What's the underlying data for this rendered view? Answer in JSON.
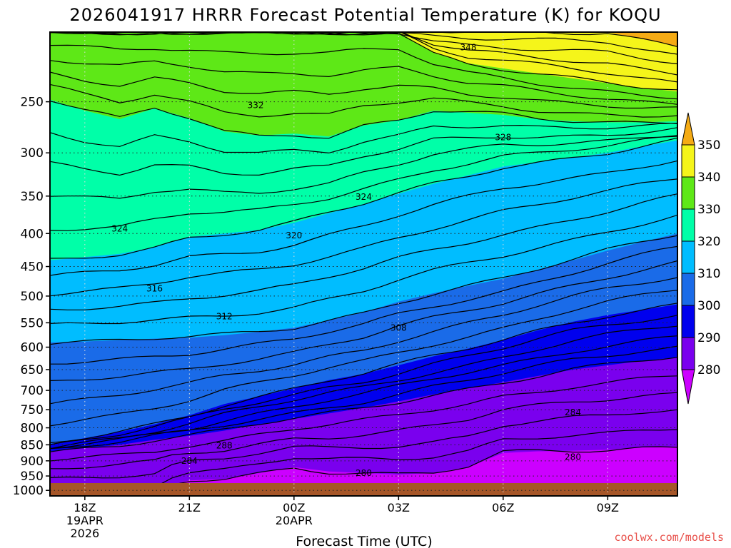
{
  "title": "2026041917 HRRR Forecast Potential Temperature (K) for KOQU",
  "xlabel": "Forecast Time (UTC)",
  "credit": "coolwx.com/models",
  "chart_data": {
    "type": "contour",
    "title": "2026041917 HRRR Forecast Potential Temperature (K) for KOQU",
    "xlabel": "Forecast Time (UTC)",
    "ylabel": "",
    "x_ticks": [
      {
        "label": "18Z",
        "sub": [
          "19APR",
          "2026"
        ],
        "hours": 1
      },
      {
        "label": "21Z",
        "sub": [],
        "hours": 4
      },
      {
        "label": "00Z",
        "sub": [
          "20APR"
        ],
        "hours": 7
      },
      {
        "label": "03Z",
        "sub": [],
        "hours": 10
      },
      {
        "label": "06Z",
        "sub": [],
        "hours": 13
      },
      {
        "label": "09Z",
        "sub": [],
        "hours": 16
      }
    ],
    "xlim_hours": [
      0,
      18
    ],
    "y_scale": "log",
    "ylim_hPa": [
      1020,
      195
    ],
    "y_ticks": [
      250,
      300,
      350,
      400,
      450,
      500,
      550,
      600,
      650,
      700,
      750,
      800,
      850,
      900,
      950,
      1000
    ],
    "grid": true,
    "colorbar": {
      "levels": [
        280,
        290,
        300,
        310,
        320,
        330,
        340,
        350
      ],
      "colors": [
        "#cc00ff",
        "#7a00ee",
        "#0000ee",
        "#1a6be8",
        "#00bdff",
        "#00ffa8",
        "#5ee817",
        "#f5f51a",
        "#f5ab14"
      ],
      "extend": "both",
      "placement": "right"
    },
    "contour_interval": 2,
    "contour_labels": [
      {
        "value": 348,
        "hours": 12,
        "hPa": 206
      },
      {
        "value": 332,
        "hours": 5.9,
        "hPa": 253
      },
      {
        "value": 328,
        "hours": 13,
        "hPa": 284
      },
      {
        "value": 324,
        "hours": 2,
        "hPa": 393
      },
      {
        "value": 324,
        "hours": 9,
        "hPa": 351
      },
      {
        "value": 320,
        "hours": 7,
        "hPa": 403
      },
      {
        "value": 316,
        "hours": 3,
        "hPa": 487
      },
      {
        "value": 312,
        "hours": 5,
        "hPa": 538
      },
      {
        "value": 308,
        "hours": 10,
        "hPa": 560
      },
      {
        "value": 288,
        "hours": 5,
        "hPa": 852
      },
      {
        "value": 284,
        "hours": 4,
        "hPa": 900
      },
      {
        "value": 284,
        "hours": 15,
        "hPa": 757
      },
      {
        "value": 280,
        "hours": 9,
        "hPa": 940
      },
      {
        "value": 280,
        "hours": 15,
        "hPa": 888
      }
    ],
    "boundaries": [
      {
        "theta": 280,
        "points": [
          [
            0,
            1020
          ],
          [
            3.2,
            1020
          ],
          [
            3.2,
            990
          ],
          [
            4,
            965
          ],
          [
            5,
            960
          ],
          [
            6,
            940
          ],
          [
            7,
            920
          ],
          [
            8,
            935
          ],
          [
            9,
            940
          ],
          [
            10,
            945
          ],
          [
            11,
            940
          ],
          [
            12,
            920
          ],
          [
            13,
            875
          ],
          [
            14,
            870
          ],
          [
            15,
            868
          ],
          [
            16,
            865
          ],
          [
            17,
            858
          ],
          [
            18,
            855
          ]
        ]
      },
      {
        "theta": 290,
        "points": [
          [
            0,
            870
          ],
          [
            1,
            860
          ],
          [
            2,
            850
          ],
          [
            3,
            835
          ],
          [
            4,
            823
          ],
          [
            5,
            808
          ],
          [
            6,
            790
          ],
          [
            7,
            775
          ],
          [
            8,
            760
          ],
          [
            9,
            745
          ],
          [
            10,
            728
          ],
          [
            11,
            710
          ],
          [
            12,
            695
          ],
          [
            13,
            680
          ],
          [
            14,
            665
          ],
          [
            15,
            650
          ],
          [
            16,
            640
          ],
          [
            17,
            630
          ],
          [
            18,
            622
          ]
        ]
      },
      {
        "theta": 300,
        "points": [
          [
            0,
            848
          ],
          [
            1,
            830
          ],
          [
            2,
            812
          ],
          [
            3,
            790
          ],
          [
            4,
            765
          ],
          [
            5,
            735
          ],
          [
            6,
            715
          ],
          [
            7,
            695
          ],
          [
            8,
            675
          ],
          [
            9,
            660
          ],
          [
            10,
            640
          ],
          [
            11,
            620
          ],
          [
            12,
            603
          ],
          [
            13,
            585
          ],
          [
            14,
            565
          ],
          [
            15,
            548
          ],
          [
            16,
            535
          ],
          [
            17,
            525
          ],
          [
            18,
            515
          ]
        ]
      },
      {
        "theta": 310,
        "points": [
          [
            0,
            590
          ],
          [
            1,
            588
          ],
          [
            2,
            585
          ],
          [
            3,
            582
          ],
          [
            4,
            580
          ],
          [
            5,
            575
          ],
          [
            6,
            568
          ],
          [
            7,
            560
          ],
          [
            8,
            545
          ],
          [
            9,
            530
          ],
          [
            10,
            510
          ],
          [
            11,
            495
          ],
          [
            12,
            482
          ],
          [
            13,
            470
          ],
          [
            14,
            455
          ],
          [
            15,
            440
          ],
          [
            16,
            425
          ],
          [
            17,
            412
          ],
          [
            18,
            400
          ]
        ]
      },
      {
        "theta": 320,
        "points": [
          [
            0,
            440
          ],
          [
            1,
            435
          ],
          [
            2,
            430
          ],
          [
            3,
            420
          ],
          [
            4,
            405
          ],
          [
            5,
            400
          ],
          [
            6,
            395
          ],
          [
            7,
            385
          ],
          [
            8,
            372
          ],
          [
            9,
            360
          ],
          [
            10,
            347
          ],
          [
            11,
            335
          ],
          [
            12,
            325
          ],
          [
            13,
            315
          ],
          [
            14,
            310
          ],
          [
            15,
            305
          ],
          [
            16,
            300
          ],
          [
            17,
            293
          ],
          [
            18,
            287
          ]
        ]
      },
      {
        "theta": 330,
        "points": [
          [
            0,
            248
          ],
          [
            1,
            258
          ],
          [
            2,
            266
          ],
          [
            3,
            256
          ],
          [
            4,
            265
          ],
          [
            5,
            278
          ],
          [
            6,
            282
          ],
          [
            7,
            280
          ],
          [
            8,
            283
          ],
          [
            9,
            272
          ],
          [
            10,
            267
          ],
          [
            11,
            258
          ],
          [
            12,
            260
          ],
          [
            13,
            262
          ],
          [
            14,
            266
          ],
          [
            15,
            268
          ],
          [
            16,
            269
          ],
          [
            17,
            269
          ],
          [
            18,
            268
          ]
        ]
      },
      {
        "theta": 340,
        "points": [
          [
            0,
            195
          ],
          [
            10,
            195
          ],
          [
            11,
            210
          ],
          [
            12,
            218
          ],
          [
            13,
            222
          ],
          [
            14,
            226
          ],
          [
            15,
            230
          ],
          [
            16,
            234
          ],
          [
            17,
            238
          ],
          [
            18,
            241
          ]
        ]
      },
      {
        "theta": 350,
        "points": [
          [
            0,
            195
          ],
          [
            16,
            195
          ],
          [
            17,
            200
          ],
          [
            18,
            205
          ]
        ]
      }
    ]
  }
}
